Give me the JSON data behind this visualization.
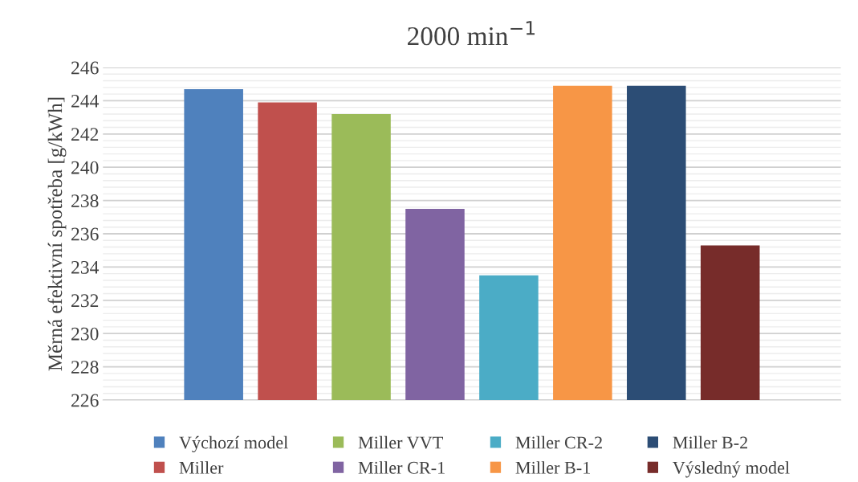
{
  "chart_data": {
    "type": "bar",
    "title": "2000 min$^{−1}$",
    "ylabel": "Měrná efektivní spotřeba [g/kWh]",
    "categories": [
      null
    ],
    "ylim": [
      226,
      246
    ],
    "yticks": [
      226,
      228,
      230,
      232,
      234,
      236,
      238,
      240,
      242,
      244,
      246
    ],
    "grid": "y",
    "legend": "bottom",
    "series": [
      {
        "name": "Výchozí model",
        "color": "#4f81bd",
        "values": [
          244.7
        ]
      },
      {
        "name": "Miller",
        "color": "#c0504d",
        "values": [
          243.9
        ]
      },
      {
        "name": "Miller VVT",
        "color": "#9bbb59",
        "values": [
          243.2
        ]
      },
      {
        "name": "Miller CR-1",
        "color": "#8064a2",
        "values": [
          237.5
        ]
      },
      {
        "name": "Miller CR-2",
        "color": "#4bacc6",
        "values": [
          233.5
        ]
      },
      {
        "name": "Miller B-1",
        "color": "#f79646",
        "values": [
          244.9
        ]
      },
      {
        "name": "Miller B-2",
        "color": "#2c4d75",
        "values": [
          244.9
        ]
      },
      {
        "name": "Výsledný model",
        "color": "#772c2a",
        "values": [
          235.3
        ]
      }
    ]
  }
}
